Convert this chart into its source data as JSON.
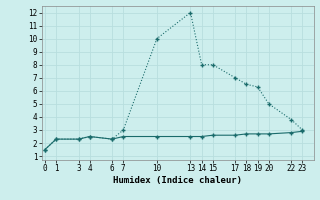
{
  "xlabel": "Humidex (Indice chaleur)",
  "bg_color": "#cdeeed",
  "grid_color": "#b8dede",
  "line_color": "#1a6b6b",
  "line1_x": [
    0,
    1,
    3,
    4,
    6,
    7,
    10,
    13,
    14,
    15,
    17,
    18,
    19,
    20,
    22,
    23
  ],
  "line1_y": [
    1.5,
    2.3,
    2.3,
    2.5,
    2.3,
    3.0,
    10.0,
    12.0,
    8.0,
    8.0,
    7.0,
    6.5,
    6.3,
    5.0,
    3.8,
    3.0
  ],
  "line2_x": [
    0,
    1,
    3,
    4,
    6,
    7,
    10,
    13,
    14,
    15,
    17,
    18,
    19,
    20,
    22,
    23
  ],
  "line2_y": [
    1.5,
    2.3,
    2.3,
    2.5,
    2.3,
    2.5,
    2.5,
    2.5,
    2.5,
    2.6,
    2.6,
    2.7,
    2.7,
    2.7,
    2.8,
    2.9
  ],
  "xticks": [
    0,
    1,
    3,
    4,
    6,
    7,
    10,
    13,
    14,
    15,
    17,
    18,
    19,
    20,
    22,
    23
  ],
  "yticks": [
    1,
    2,
    3,
    4,
    5,
    6,
    7,
    8,
    9,
    10,
    11,
    12
  ],
  "xlim": [
    -0.3,
    24.0
  ],
  "ylim": [
    0.7,
    12.5
  ]
}
